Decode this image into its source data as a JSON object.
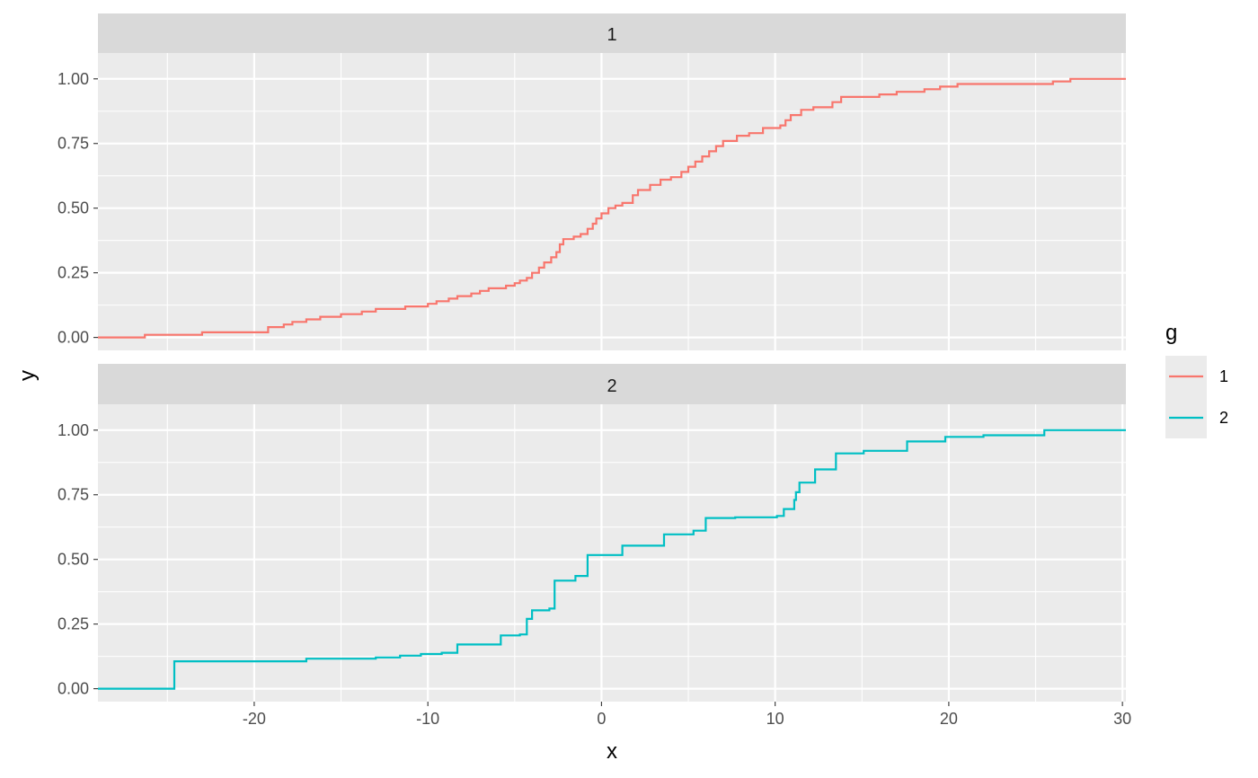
{
  "chart_data": {
    "type": "line",
    "step": true,
    "xlabel": "x",
    "ylabel": "y",
    "xlim": [
      -29.0,
      30.2
    ],
    "ylim": [
      -0.05,
      1.1
    ],
    "x_ticks": [
      -20,
      -10,
      0,
      10,
      20,
      30
    ],
    "x_tick_labels": [
      "-20",
      "-10",
      "0",
      "10",
      "20",
      "30"
    ],
    "y_ticks": [
      0,
      0.25,
      0.5,
      0.75,
      1
    ],
    "y_tick_labels": [
      "0.00",
      "0.25",
      "0.50",
      "0.75",
      "1.00"
    ],
    "grid": true,
    "legend": {
      "title": "g",
      "position": "right"
    },
    "panels": [
      {
        "strip": "1",
        "series_name": "1",
        "color": "#F8766D",
        "points": [
          [
            -29.0,
            0.0
          ],
          [
            -26.3,
            0.01
          ],
          [
            -23.0,
            0.02
          ],
          [
            -19.2,
            0.04
          ],
          [
            -18.3,
            0.05
          ],
          [
            -17.8,
            0.06
          ],
          [
            -17.0,
            0.07
          ],
          [
            -16.2,
            0.08
          ],
          [
            -15.0,
            0.09
          ],
          [
            -13.8,
            0.1
          ],
          [
            -13.0,
            0.11
          ],
          [
            -11.3,
            0.12
          ],
          [
            -10.0,
            0.13
          ],
          [
            -9.5,
            0.14
          ],
          [
            -8.8,
            0.15
          ],
          [
            -8.3,
            0.16
          ],
          [
            -7.5,
            0.17
          ],
          [
            -7.0,
            0.18
          ],
          [
            -6.5,
            0.19
          ],
          [
            -5.5,
            0.2
          ],
          [
            -5.0,
            0.21
          ],
          [
            -4.7,
            0.22
          ],
          [
            -4.3,
            0.23
          ],
          [
            -4.0,
            0.25
          ],
          [
            -3.6,
            0.27
          ],
          [
            -3.3,
            0.29
          ],
          [
            -2.9,
            0.31
          ],
          [
            -2.6,
            0.33
          ],
          [
            -2.4,
            0.36
          ],
          [
            -2.2,
            0.38
          ],
          [
            -1.6,
            0.39
          ],
          [
            -1.2,
            0.4
          ],
          [
            -0.8,
            0.42
          ],
          [
            -0.5,
            0.44
          ],
          [
            -0.3,
            0.46
          ],
          [
            0.0,
            0.48
          ],
          [
            0.4,
            0.5
          ],
          [
            0.8,
            0.51
          ],
          [
            1.2,
            0.52
          ],
          [
            1.8,
            0.55
          ],
          [
            2.1,
            0.57
          ],
          [
            2.8,
            0.59
          ],
          [
            3.4,
            0.61
          ],
          [
            4.0,
            0.62
          ],
          [
            4.6,
            0.64
          ],
          [
            5.0,
            0.66
          ],
          [
            5.4,
            0.68
          ],
          [
            5.8,
            0.7
          ],
          [
            6.2,
            0.72
          ],
          [
            6.6,
            0.74
          ],
          [
            7.0,
            0.76
          ],
          [
            7.8,
            0.78
          ],
          [
            8.5,
            0.79
          ],
          [
            9.3,
            0.81
          ],
          [
            10.3,
            0.82
          ],
          [
            10.6,
            0.84
          ],
          [
            10.9,
            0.86
          ],
          [
            11.5,
            0.88
          ],
          [
            12.2,
            0.89
          ],
          [
            13.3,
            0.91
          ],
          [
            13.8,
            0.93
          ],
          [
            16.0,
            0.94
          ],
          [
            17.0,
            0.95
          ],
          [
            18.6,
            0.96
          ],
          [
            19.5,
            0.97
          ],
          [
            20.5,
            0.98
          ],
          [
            26.0,
            0.99
          ],
          [
            27.0,
            1.0
          ],
          [
            30.2,
            1.0
          ]
        ]
      },
      {
        "strip": "2",
        "series_name": "2",
        "color": "#00BFC4",
        "points": [
          [
            -29.0,
            0.0
          ],
          [
            -24.6,
            0.106
          ],
          [
            -17.0,
            0.116
          ],
          [
            -13.0,
            0.121
          ],
          [
            -11.6,
            0.128
          ],
          [
            -10.4,
            0.134
          ],
          [
            -9.2,
            0.139
          ],
          [
            -8.3,
            0.171
          ],
          [
            -5.8,
            0.206
          ],
          [
            -4.7,
            0.21
          ],
          [
            -4.3,
            0.27
          ],
          [
            -4.0,
            0.303
          ],
          [
            -3.0,
            0.31
          ],
          [
            -2.7,
            0.418
          ],
          [
            -1.5,
            0.436
          ],
          [
            -0.8,
            0.517
          ],
          [
            1.2,
            0.553
          ],
          [
            3.6,
            0.597
          ],
          [
            5.3,
            0.611
          ],
          [
            6.0,
            0.66
          ],
          [
            7.7,
            0.663
          ],
          [
            10.1,
            0.668
          ],
          [
            10.5,
            0.695
          ],
          [
            11.1,
            0.73
          ],
          [
            11.2,
            0.76
          ],
          [
            11.4,
            0.797
          ],
          [
            12.3,
            0.848
          ],
          [
            13.5,
            0.91
          ],
          [
            15.1,
            0.92
          ],
          [
            17.6,
            0.956
          ],
          [
            19.8,
            0.974
          ],
          [
            22.0,
            0.98
          ],
          [
            25.5,
            1.0
          ],
          [
            30.2,
            1.0
          ]
        ]
      }
    ]
  }
}
